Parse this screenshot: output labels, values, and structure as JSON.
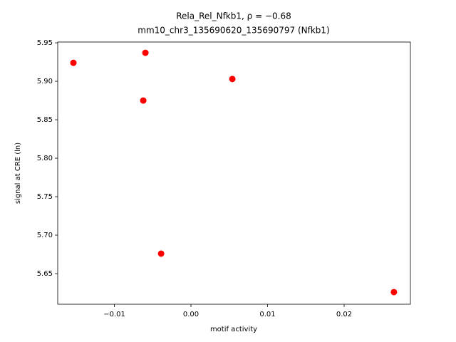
{
  "chart_data": {
    "type": "scatter",
    "title": "Rela_Rel_Nfkb1, ρ = −0.68",
    "subtitle": "mm10_chr3_135690620_135690797 (Nfkb1)",
    "x_label": "motif activity",
    "y_label": "signal at CRE (ln)",
    "color": "#ff0000",
    "x": [
      -0.01535,
      -0.00595,
      0.0054,
      -0.00623,
      -0.0039,
      0.0265
    ],
    "values": [
      5.924,
      5.937,
      5.903,
      5.875,
      5.676,
      5.626
    ],
    "xlim": [
      -0.0174,
      0.02865
    ],
    "ylim": [
      5.6102,
      5.951
    ],
    "xticks": [
      {
        "value": -0.01,
        "label": "−0.01"
      },
      {
        "value": 0,
        "label": "0.00"
      },
      0.01,
      0.02
    ],
    "yticks": [
      5.65,
      {
        "value": 5.7,
        "label": "5.70"
      },
      5.75,
      {
        "value": 5.8,
        "label": "5.80"
      },
      5.85,
      {
        "value": 5.9,
        "label": "5.90"
      },
      5.95
    ],
    "grid": false
  }
}
